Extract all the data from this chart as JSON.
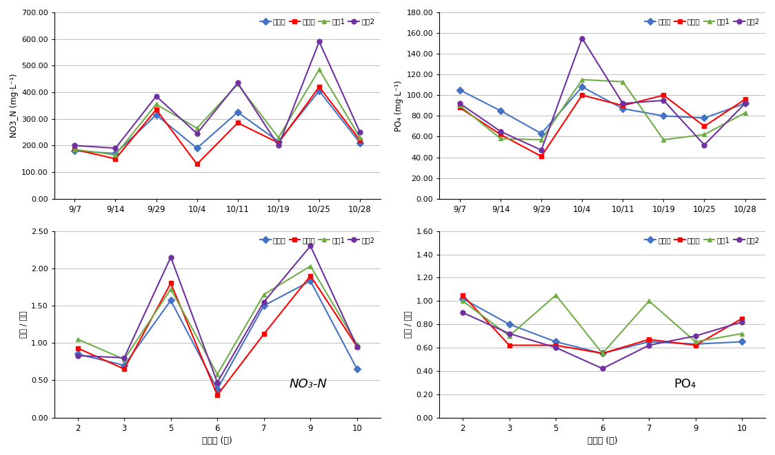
{
  "top_left": {
    "ylabel": "NO3_N (mg·L⁻¹)",
    "ylim": [
      0,
      700
    ],
    "yticks": [
      0,
      100,
      200,
      300,
      400,
      500,
      600,
      700
    ],
    "xtick_labels": [
      "9/7",
      "9/14",
      "9/29",
      "10/4",
      "10/11",
      "10/19",
      "10/25",
      "10/28"
    ],
    "series": {
      "그로단": [
        180,
        170,
        315,
        190,
        325,
        215,
        405,
        210
      ],
      "원예원": [
        185,
        150,
        335,
        130,
        285,
        210,
        420,
        220
      ],
      "수정1": [
        185,
        165,
        355,
        265,
        430,
        230,
        485,
        230
      ],
      "수정2": [
        200,
        190,
        385,
        245,
        435,
        200,
        590,
        250
      ]
    }
  },
  "top_right": {
    "ylabel": "PO₄ (mg·L⁻¹)",
    "ylim": [
      0,
      180
    ],
    "yticks": [
      0,
      20,
      40,
      60,
      80,
      100,
      120,
      140,
      160,
      180
    ],
    "xtick_labels": [
      "9/7",
      "9/14",
      "9/29",
      "10/4",
      "10/11",
      "10/19",
      "10/25",
      "10/28"
    ],
    "series": {
      "그로단": [
        105,
        85,
        63,
        108,
        87,
        80,
        78,
        92
      ],
      "원예원": [
        88,
        62,
        41,
        100,
        90,
        100,
        70,
        96
      ],
      "수정1": [
        90,
        58,
        57,
        115,
        113,
        57,
        62,
        83
      ],
      "수정2": [
        92,
        65,
        47,
        155,
        92,
        95,
        52,
        92
      ]
    }
  },
  "bottom_left": {
    "ylabel": "배액 / 급액",
    "xlabel": "정식후 (주)",
    "ylim": [
      0,
      2.5
    ],
    "yticks": [
      0.0,
      0.5,
      1.0,
      1.5,
      2.0,
      2.5
    ],
    "xtick_labels": [
      "2",
      "3",
      "5",
      "6",
      "7",
      "9",
      "10"
    ],
    "annotation": "NO₃-N",
    "series": {
      "그로단": [
        0.85,
        0.7,
        1.57,
        0.38,
        1.5,
        1.83,
        0.65
      ],
      "원예원": [
        0.93,
        0.65,
        1.8,
        0.3,
        1.12,
        1.9,
        0.95
      ],
      "수정1": [
        1.05,
        0.78,
        1.72,
        0.58,
        1.65,
        2.03,
        0.98
      ],
      "수정2": [
        0.83,
        0.8,
        2.15,
        0.47,
        1.55,
        2.3,
        0.95
      ]
    }
  },
  "bottom_right": {
    "ylabel": "배액 / 급액",
    "xlabel": "정식후 (주)",
    "ylim": [
      0,
      1.6
    ],
    "yticks": [
      0.0,
      0.2,
      0.4,
      0.6,
      0.8,
      1.0,
      1.2,
      1.4,
      1.6
    ],
    "xtick_labels": [
      "2",
      "3",
      "5",
      "6",
      "7",
      "9",
      "10"
    ],
    "annotation": "PO₄",
    "series": {
      "그로단": [
        1.02,
        0.8,
        0.65,
        0.55,
        0.65,
        0.63,
        0.65
      ],
      "원예원": [
        1.05,
        0.62,
        0.62,
        0.55,
        0.67,
        0.62,
        0.85
      ],
      "수정1": [
        1.0,
        0.7,
        1.05,
        0.55,
        1.0,
        0.65,
        0.72
      ],
      "수정2": [
        0.9,
        0.72,
        0.6,
        0.42,
        0.62,
        0.7,
        0.82
      ]
    }
  },
  "colors": {
    "그로단": "#4472C4",
    "원예원": "#FF0000",
    "수정1": "#70AD47",
    "수정2": "#7030A0"
  },
  "legend_labels": [
    "그로단",
    "원예원",
    "수정1",
    "수정2"
  ],
  "marker": "s",
  "linewidth": 1.5,
  "markersize": 5
}
